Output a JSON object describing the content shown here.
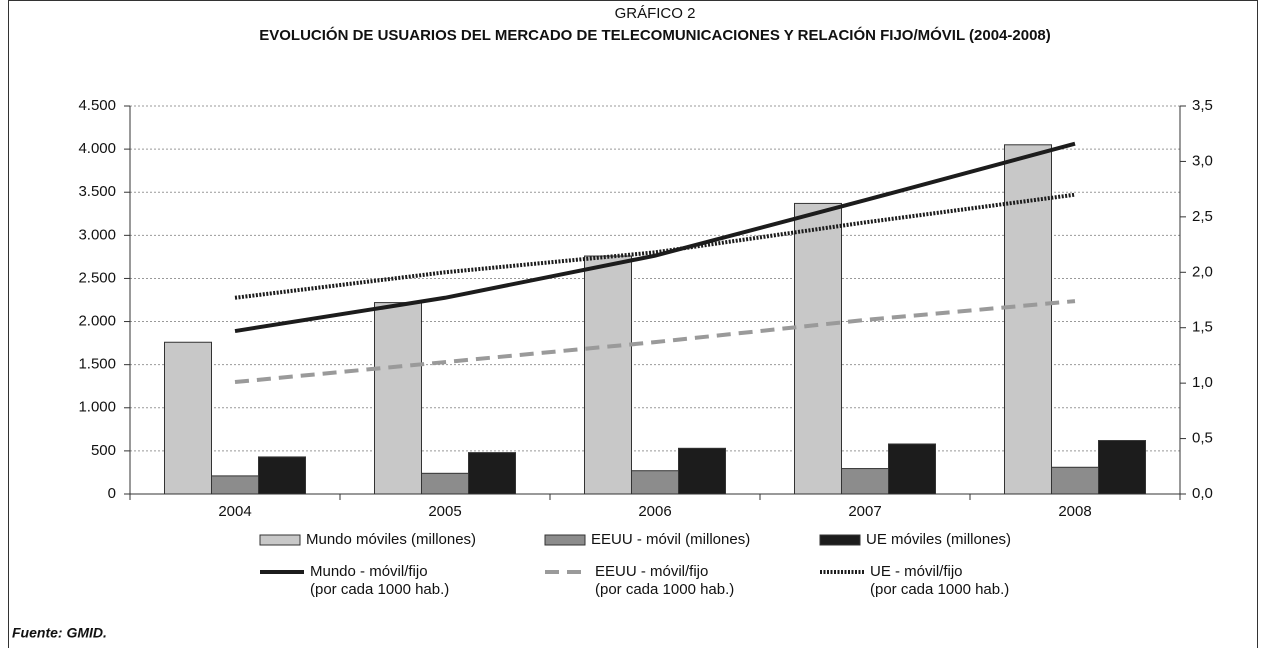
{
  "chart_data": {
    "type": "bar",
    "supertitle": "GRÁFICO 2",
    "title": "EVOLUCIÓN DE USUARIOS DEL MERCADO DE TELECOMUNICACIONES Y RELACIÓN FIJO/MÓVIL (2004-2008)",
    "source": "Fuente: GMID.",
    "categories": [
      "2004",
      "2005",
      "2006",
      "2007",
      "2008"
    ],
    "ylim": [
      0,
      4500
    ],
    "yticks": [
      0,
      {
        "value": 500,
        "label": "500"
      },
      {
        "value": 1000,
        "label": "1.000"
      },
      {
        "value": 1500,
        "label": "1.500"
      },
      {
        "value": 2000,
        "label": "2.000"
      },
      {
        "value": 2500,
        "label": "2.500"
      },
      {
        "value": 3000,
        "label": "3.000"
      },
      {
        "value": 3500,
        "label": "3.500"
      },
      {
        "value": 4000,
        "label": "4.000"
      },
      {
        "value": 4500,
        "label": "4.500"
      }
    ],
    "y2lim": [
      0,
      3.5
    ],
    "y2ticks": [
      {
        "value": 0,
        "label": "0,0"
      },
      {
        "value": 0.5,
        "label": "0,5"
      },
      {
        "value": 1,
        "label": "1,0"
      },
      {
        "value": 1.5,
        "label": "1,5"
      },
      {
        "value": 2,
        "label": "2,0"
      },
      {
        "value": 2.5,
        "label": "2,5"
      },
      {
        "value": 3,
        "label": "3,0"
      },
      {
        "value": 3.5,
        "label": "3,5"
      }
    ],
    "grid": true,
    "series": [
      {
        "name": "Mundo móviles (millones)",
        "type": "bar",
        "color": "#c8c8c8",
        "values": [
          1760,
          2220,
          2760,
          3370,
          4050
        ]
      },
      {
        "name": "EEUU - móvil (millones)",
        "type": "bar",
        "color": "#8c8c8c",
        "values": [
          210,
          240,
          270,
          295,
          310
        ]
      },
      {
        "name": "UE móviles (millones)",
        "type": "bar",
        "color": "#1c1c1c",
        "values": [
          430,
          480,
          530,
          580,
          620
        ]
      },
      {
        "name": "Mundo - móvil/fijo\n(por cada 1000 hab.)",
        "type": "line",
        "axis": "y2",
        "color": "#1c1c1c",
        "style": "solid",
        "values": [
          1.47,
          1.77,
          2.15,
          2.65,
          3.16
        ]
      },
      {
        "name": "EEUU - móvil/fijo\n(por cada 1000 hab.)",
        "type": "line",
        "axis": "y2",
        "color": "#9a9a9a",
        "style": "dashed",
        "values": [
          1.01,
          1.19,
          1.37,
          1.57,
          1.74
        ]
      },
      {
        "name": "UE  - móvil/fijo\n(por cada 1000 hab.)",
        "type": "line",
        "axis": "y2",
        "color": "#1c1c1c",
        "style": "dotted",
        "values": [
          1.77,
          2.0,
          2.18,
          2.45,
          2.7
        ]
      }
    ]
  }
}
